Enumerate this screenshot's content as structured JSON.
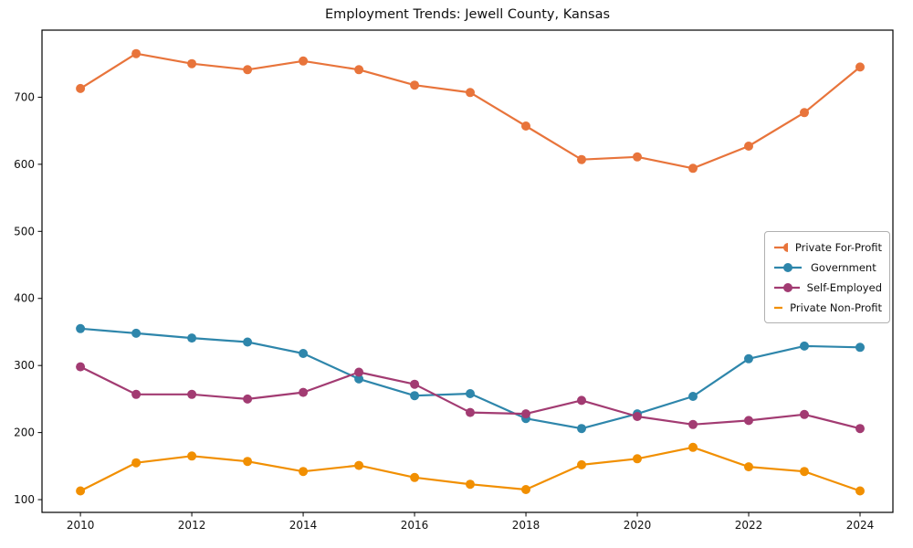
{
  "chart_data": {
    "type": "line",
    "title": "Employment Trends: Jewell County, Kansas",
    "xlabel": "",
    "ylabel": "",
    "x": [
      2010,
      2011,
      2012,
      2013,
      2014,
      2015,
      2016,
      2017,
      2018,
      2019,
      2020,
      2021,
      2022,
      2023,
      2024
    ],
    "series": [
      {
        "name": "Private For-Profit",
        "color": "#e8743b",
        "values": [
          713,
          765,
          750,
          741,
          754,
          741,
          718,
          707,
          657,
          607,
          611,
          594,
          627,
          677,
          745
        ]
      },
      {
        "name": "Government",
        "color": "#2e86ab",
        "values": [
          355,
          348,
          341,
          335,
          318,
          280,
          255,
          258,
          221,
          206,
          228,
          254,
          310,
          329,
          327
        ]
      },
      {
        "name": "Self-Employed",
        "color": "#a23b72",
        "values": [
          298,
          257,
          257,
          250,
          260,
          290,
          272,
          230,
          228,
          248,
          224,
          212,
          218,
          227,
          206
        ]
      },
      {
        "name": "Private Non-Profit",
        "color": "#f18f01",
        "values": [
          113,
          155,
          165,
          157,
          142,
          151,
          133,
          123,
          115,
          152,
          161,
          178,
          149,
          142,
          113
        ]
      }
    ],
    "xticks": [
      2010,
      2012,
      2014,
      2016,
      2018,
      2020,
      2022,
      2024
    ],
    "yticks": [
      100,
      200,
      300,
      400,
      500,
      600,
      700
    ],
    "xlim": [
      2009.31,
      2024.59
    ],
    "ylim": [
      81,
      800
    ],
    "grid": false,
    "marker": "circle",
    "legend_position": "center right"
  }
}
